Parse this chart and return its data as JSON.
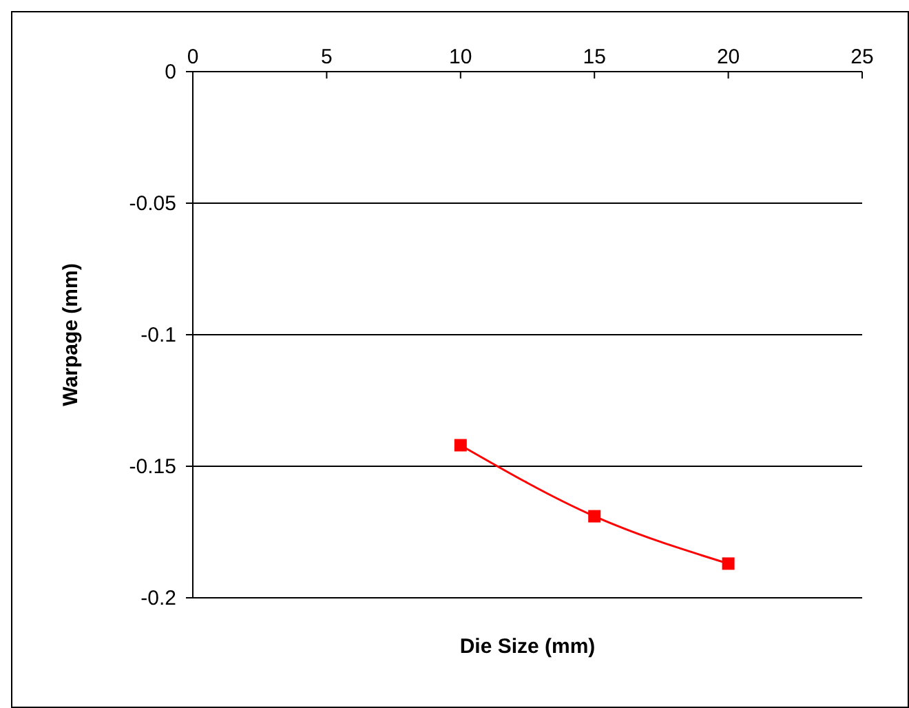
{
  "chart_data": {
    "type": "line",
    "xlabel": "Die Size (mm)",
    "ylabel": "Warpage (mm)",
    "series": [
      {
        "color": "#ff0000",
        "x": [
          10,
          15,
          20
        ],
        "values": [
          -0.142,
          -0.169,
          -0.187
        ]
      }
    ],
    "xlim": [
      0,
      25
    ],
    "xticks": [
      0,
      5,
      10,
      15,
      20,
      25
    ],
    "ylim": [
      -0.2,
      0
    ],
    "yticks": [
      -0.2,
      -0.15,
      -0.1,
      -0.05,
      0
    ],
    "grid": "y",
    "marker": "square",
    "line_style": "solid"
  }
}
